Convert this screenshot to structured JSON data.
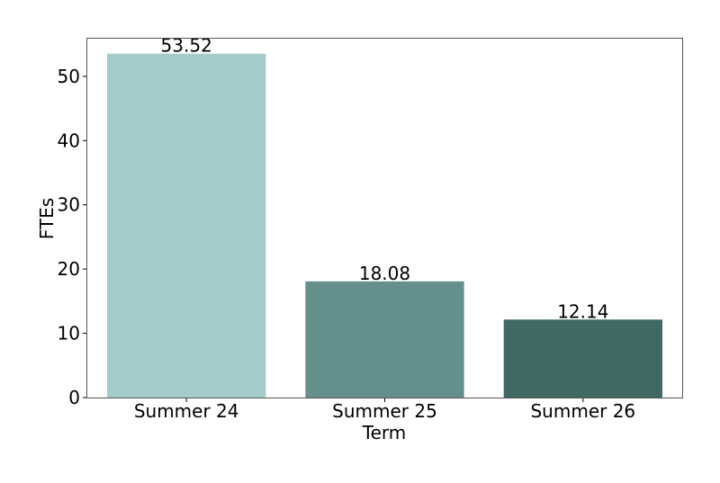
{
  "chart_data": {
    "type": "bar",
    "title": "",
    "xlabel": "Term",
    "ylabel": "FTEs",
    "categories": [
      "Summer 24",
      "Summer 25",
      "Summer 26"
    ],
    "values": [
      53.52,
      18.08,
      12.14
    ],
    "data_labels": [
      "53.52",
      "18.08",
      "12.14"
    ],
    "bar_colors": [
      "#a3cbc8",
      "#648f8b",
      "#416964"
    ],
    "ylim": [
      0,
      56
    ],
    "yticks": [
      0,
      10,
      20,
      30,
      40,
      50
    ],
    "grid": false,
    "legend": "none"
  }
}
